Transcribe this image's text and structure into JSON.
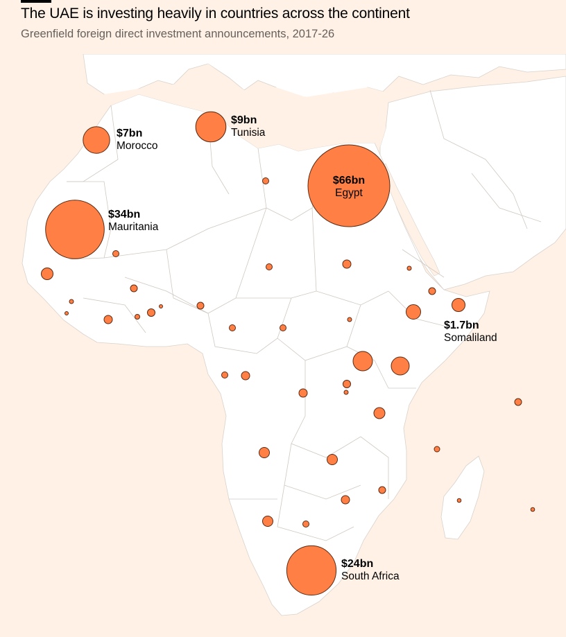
{
  "header": {
    "title": "The UAE is investing heavily in countries across the continent",
    "subtitle": "Greenfield foreign direct investment announcements, 2017-26"
  },
  "colors": {
    "background": "#fff1e5",
    "land": "#ffffff",
    "bubble_fill": "#ff7f45",
    "bubble_stroke": "#5a2a12"
  },
  "map": {
    "region": "Africa and Middle East",
    "labeled_bubbles": [
      {
        "country": "Morocco",
        "value_label": "$7bn",
        "value_bn": 7
      },
      {
        "country": "Tunisia",
        "value_label": "$9bn",
        "value_bn": 9
      },
      {
        "country": "Egypt",
        "value_label": "$66bn",
        "value_bn": 66
      },
      {
        "country": "Mauritania",
        "value_label": "$34bn",
        "value_bn": 34
      },
      {
        "country": "Somaliland",
        "value_label": "$1.7bn",
        "value_bn": 1.7
      },
      {
        "country": "South Africa",
        "value_label": "$24bn",
        "value_bn": 24
      }
    ],
    "unlabeled_bubble_count": 35
  }
}
